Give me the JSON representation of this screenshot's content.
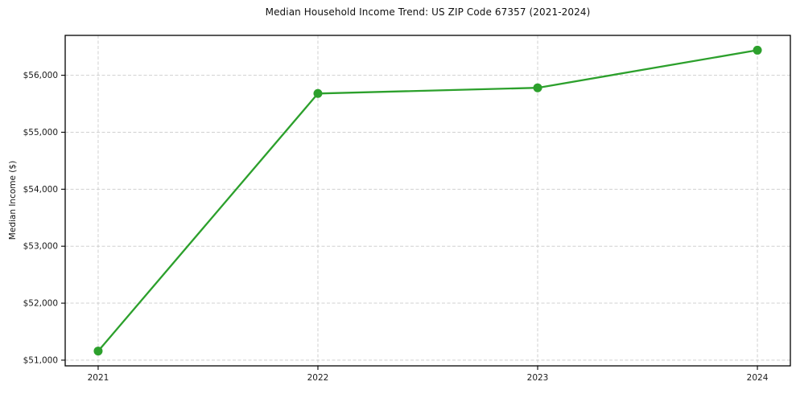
{
  "chart_data": {
    "type": "line",
    "title": "Median Household Income Trend: US ZIP Code 67357 (2021-2024)",
    "xlabel": "",
    "ylabel": "Median Income ($)",
    "categories": [
      "2021",
      "2022",
      "2023",
      "2024"
    ],
    "x": [
      2021,
      2022,
      2023,
      2024
    ],
    "values": [
      51160,
      55680,
      55780,
      56440
    ],
    "yticks": [
      51000,
      52000,
      53000,
      54000,
      55000,
      56000
    ],
    "ytick_labels": [
      "$51,000",
      "$52,000",
      "$53,000",
      "$54,000",
      "$55,000",
      "$56,000"
    ],
    "xlim": [
      2020.85,
      2024.15
    ],
    "ylim": [
      50900,
      56700
    ],
    "grid": true,
    "grid_style": "dashed",
    "legend": "none",
    "line_color": "#2ca02c",
    "marker_color": "#2ca02c",
    "grid_color": "#d0d0d0",
    "frame_color": "#000000",
    "marker": "circle"
  }
}
